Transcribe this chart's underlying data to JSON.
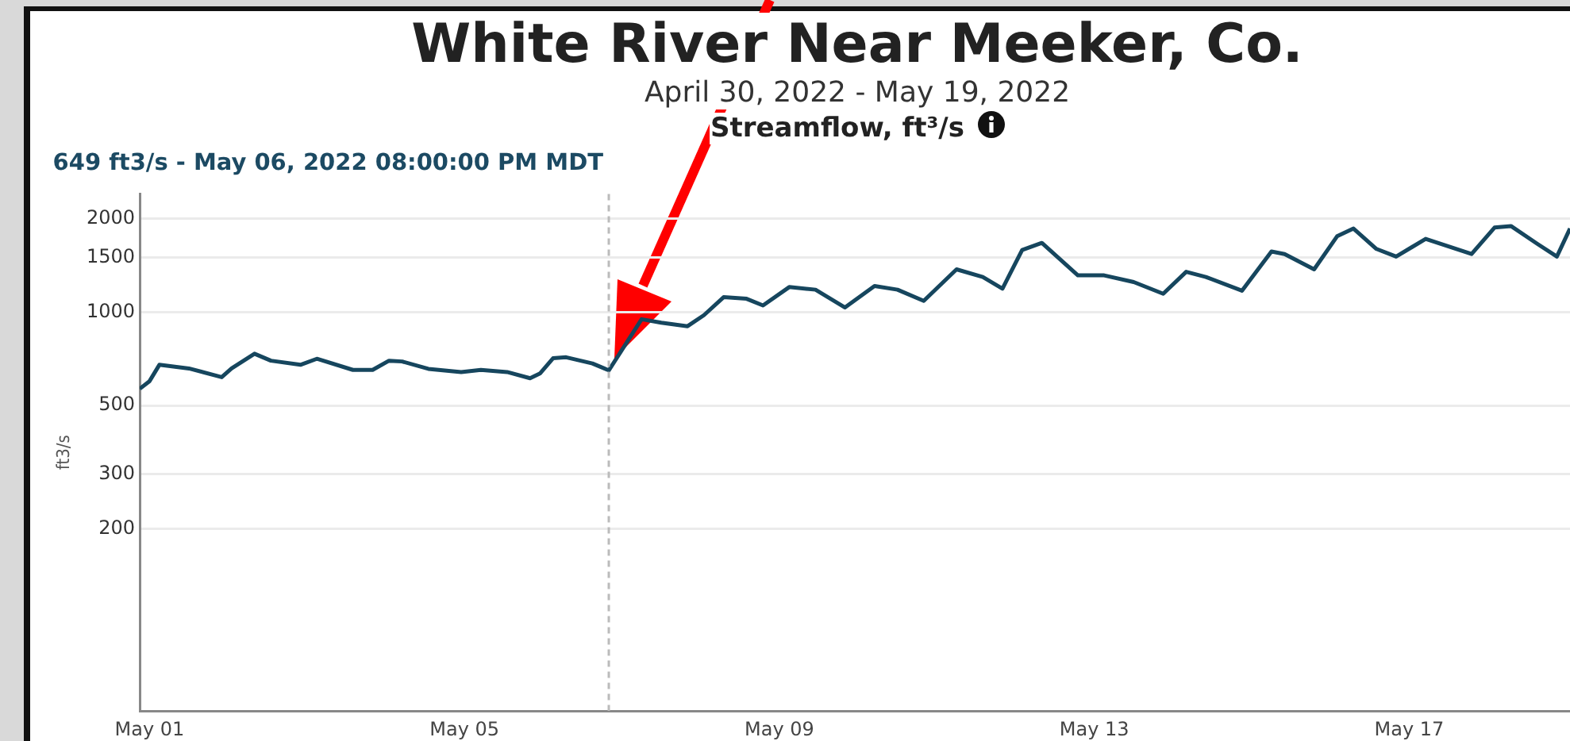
{
  "chart_data": {
    "type": "line",
    "title": "White River Near Meeker, Co.",
    "subtitle": "April 30, 2022 - May 19, 2022",
    "ylabel": "ft3/s",
    "annotations": [
      "Streamflow, ft³/s"
    ],
    "log": "y",
    "grid": "y",
    "legend": false,
    "marker": "none",
    "line_style": "solid",
    "xlim": [
      "2022-04-30T21:00",
      "2022-05-19T01:00"
    ],
    "xticks": [
      {
        "value": "2022-05-01",
        "label": "May 01"
      },
      {
        "value": "2022-05-05",
        "label": "May 05"
      },
      {
        "value": "2022-05-09",
        "label": "May 09"
      },
      {
        "value": "2022-05-13",
        "label": "May 13"
      },
      {
        "value": "2022-05-17",
        "label": "May 17"
      }
    ],
    "ylim": [
      52,
      2400
    ],
    "yticks": [
      200,
      300,
      500,
      1000,
      1500,
      2000
    ],
    "ref_lines": [
      {
        "axis": "x",
        "value": "2022-05-06T20:00",
        "label": "649 ft3/s - May 06, 2022 08:00:00 PM MDT",
        "color": "#bbbbbb",
        "line_style": "dashed"
      }
    ],
    "x": [
      "2022-04-30T21:00",
      "2022-05-01T00:00",
      "2022-05-01T03:00",
      "2022-05-01T12:00",
      "2022-05-01T22:00",
      "2022-05-02T01:00",
      "2022-05-02T08:00",
      "2022-05-02T13:00",
      "2022-05-02T22:00",
      "2022-05-03T03:00",
      "2022-05-03T14:00",
      "2022-05-03T20:00",
      "2022-05-04T01:00",
      "2022-05-04T05:00",
      "2022-05-04T13:00",
      "2022-05-04T23:00",
      "2022-05-05T05:00",
      "2022-05-05T13:00",
      "2022-05-05T20:00",
      "2022-05-05T23:00",
      "2022-05-06T03:00",
      "2022-05-06T07:00",
      "2022-05-06T15:00",
      "2022-05-06T20:00",
      "2022-05-07T06:00",
      "2022-05-07T12:00",
      "2022-05-07T20:00",
      "2022-05-08T01:00",
      "2022-05-08T07:00",
      "2022-05-08T14:00",
      "2022-05-08T19:00",
      "2022-05-09T03:00",
      "2022-05-09T11:00",
      "2022-05-09T20:00",
      "2022-05-10T05:00",
      "2022-05-10T12:00",
      "2022-05-10T20:00",
      "2022-05-11T06:00",
      "2022-05-11T14:00",
      "2022-05-11T20:00",
      "2022-05-12T02:00",
      "2022-05-12T08:00",
      "2022-05-12T19:00",
      "2022-05-13T03:00",
      "2022-05-13T12:00",
      "2022-05-13T21:00",
      "2022-05-14T04:00",
      "2022-05-14T10:00",
      "2022-05-14T21:00",
      "2022-05-15T06:00",
      "2022-05-15T10:00",
      "2022-05-15T19:00",
      "2022-05-16T02:00",
      "2022-05-16T07:00",
      "2022-05-16T14:00",
      "2022-05-16T20:00",
      "2022-05-17T05:00",
      "2022-05-17T12:00",
      "2022-05-17T19:00",
      "2022-05-18T02:00",
      "2022-05-18T07:00",
      "2022-05-18T15:00",
      "2022-05-18T21:00",
      "2022-05-19T01:00"
    ],
    "series": [
      {
        "color": "#16465e",
        "values": [
          566,
          599,
          676,
          658,
          617,
          658,
          734,
          697,
          676,
          707,
          651,
          651,
          697,
          693,
          656,
          641,
          651,
          641,
          612,
          634,
          710,
          715,
          683,
          649,
          948,
          924,
          900,
          977,
          1116,
          1103,
          1050,
          1203,
          1180,
          1034,
          1212,
          1180,
          1086,
          1372,
          1297,
          1189,
          1584,
          1669,
          1312,
          1312,
          1249,
          1145,
          1347,
          1297,
          1171,
          1566,
          1537,
          1372,
          1753,
          1856,
          1596,
          1508,
          1720,
          1626,
          1537,
          1870,
          1891,
          1658,
          1508,
          1856
        ]
      }
    ]
  }
}
